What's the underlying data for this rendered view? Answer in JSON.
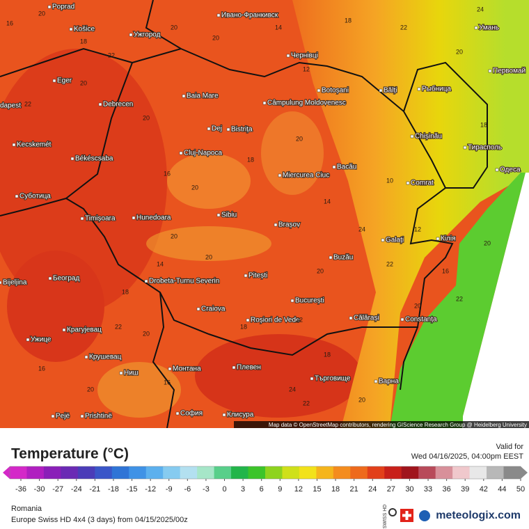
{
  "map": {
    "attribution": "Map data © OpenStreetMap contributors, rendering GIScience Research Group @ Heidelberg University",
    "cities": [
      "Poprad",
      "Košice",
      "Ужгород",
      "Eger",
      "Debrecen",
      "dapest",
      "Kecskemét",
      "Békéscsaba",
      "Суботица",
      "Timișoara",
      "Hunedoara",
      "Sibiu",
      "Brașov",
      "Baia Mare",
      "Dej",
      "Bistrița",
      "Cluj-Napoca",
      "Câmpulung Moldovenesc",
      "Botoșani",
      "Bălți",
      "Рыбница",
      "Chișinău",
      "Тирасполь",
      "Ивано-Франкивск",
      "Чернівці",
      "Умань",
      "Первомай",
      "Одеса",
      "Miercurea Ciuc",
      "Bacău",
      "Comrat",
      "Galați",
      "Кілія",
      "Buzău",
      "Pitești",
      "Drobeta-Turnu Severin",
      "Craiova",
      "Roșiori de Vede",
      "București",
      "Călărași",
      "Constanța",
      "Београд",
      "Bijeljina",
      "Крагујевац",
      "Ужице",
      "Крушевац",
      "Ниш",
      "Монтана",
      "Плевен",
      "Търговище",
      "Варна",
      "София",
      "Prishtinë",
      "Клисура",
      "Pejë"
    ],
    "temperature_labels": [
      16,
      20,
      18,
      22,
      20,
      20,
      14,
      12,
      18,
      22,
      20,
      24,
      18,
      20,
      22,
      20,
      16,
      20,
      18,
      20,
      14,
      10,
      12,
      16,
      20,
      22,
      20,
      22,
      24,
      20,
      22,
      18,
      20,
      20,
      14,
      18,
      22,
      20,
      16,
      24,
      22,
      20,
      18,
      20,
      16
    ]
  },
  "legend": {
    "title": "Temperature (°C)",
    "ticks": [
      -36,
      -30,
      -27,
      -24,
      -21,
      -18,
      -15,
      -12,
      -9,
      -6,
      -3,
      0,
      3,
      6,
      9,
      12,
      15,
      18,
      21,
      24,
      27,
      30,
      33,
      36,
      39,
      42,
      44,
      50
    ],
    "colors": [
      "#d428c8",
      "#b01fc0",
      "#8a1fb8",
      "#6a2ab4",
      "#4b3cb8",
      "#3a56c8",
      "#2f74d6",
      "#3f92e6",
      "#5cb0ee",
      "#86cbf0",
      "#b3e0f0",
      "#a6e6c8",
      "#58cf8a",
      "#22b54a",
      "#3cc42a",
      "#8ed31e",
      "#cfe01a",
      "#f2e21a",
      "#f5b51c",
      "#f48c1e",
      "#ee6a1c",
      "#e2401a",
      "#c8201a",
      "#a0141c",
      "#b84a5a",
      "#d8909a",
      "#f0c8cc",
      "#e8e8e8",
      "#b8b8b8",
      "#8a8a8a"
    ]
  },
  "footer": {
    "valid_label": "Valid for",
    "valid_time": "Wed 04/16/2025, 04:00pm EEST",
    "region": "Romania",
    "model": "Europe Swiss HD 4x4 (3 days) from 04/15/2025/00z",
    "badge": "SWISS HD",
    "brand": "meteologix.com"
  }
}
